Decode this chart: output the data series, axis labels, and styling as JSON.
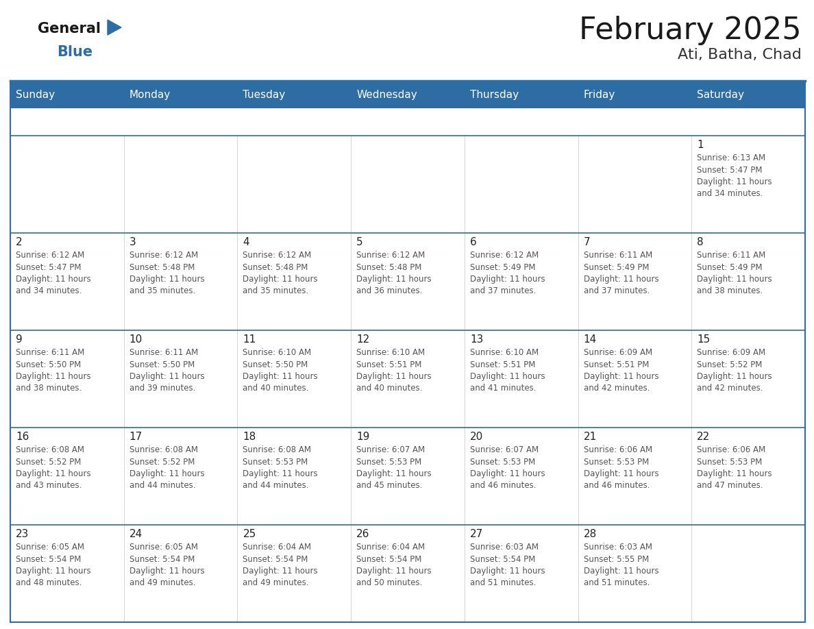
{
  "title": "February 2025",
  "subtitle": "Ati, Batha, Chad",
  "header_bg": "#2E6DA4",
  "header_text_color": "#FFFFFF",
  "divider_color": "#2E6DA4",
  "text_color": "#333333",
  "info_text_color": "#555555",
  "day_num_color": "#222222",
  "days_of_week": [
    "Sunday",
    "Monday",
    "Tuesday",
    "Wednesday",
    "Thursday",
    "Friday",
    "Saturday"
  ],
  "calendar_data": [
    [
      null,
      null,
      null,
      null,
      null,
      null,
      {
        "day": "1",
        "sunrise": "6:13 AM",
        "sunset": "5:47 PM",
        "daylight_mins": "and 34 minutes."
      }
    ],
    [
      {
        "day": "2",
        "sunrise": "6:12 AM",
        "sunset": "5:47 PM",
        "daylight_mins": "and 34 minutes."
      },
      {
        "day": "3",
        "sunrise": "6:12 AM",
        "sunset": "5:48 PM",
        "daylight_mins": "and 35 minutes."
      },
      {
        "day": "4",
        "sunrise": "6:12 AM",
        "sunset": "5:48 PM",
        "daylight_mins": "and 35 minutes."
      },
      {
        "day": "5",
        "sunrise": "6:12 AM",
        "sunset": "5:48 PM",
        "daylight_mins": "and 36 minutes."
      },
      {
        "day": "6",
        "sunrise": "6:12 AM",
        "sunset": "5:49 PM",
        "daylight_mins": "and 37 minutes."
      },
      {
        "day": "7",
        "sunrise": "6:11 AM",
        "sunset": "5:49 PM",
        "daylight_mins": "and 37 minutes."
      },
      {
        "day": "8",
        "sunrise": "6:11 AM",
        "sunset": "5:49 PM",
        "daylight_mins": "and 38 minutes."
      }
    ],
    [
      {
        "day": "9",
        "sunrise": "6:11 AM",
        "sunset": "5:50 PM",
        "daylight_mins": "and 38 minutes."
      },
      {
        "day": "10",
        "sunrise": "6:11 AM",
        "sunset": "5:50 PM",
        "daylight_mins": "and 39 minutes."
      },
      {
        "day": "11",
        "sunrise": "6:10 AM",
        "sunset": "5:50 PM",
        "daylight_mins": "and 40 minutes."
      },
      {
        "day": "12",
        "sunrise": "6:10 AM",
        "sunset": "5:51 PM",
        "daylight_mins": "and 40 minutes."
      },
      {
        "day": "13",
        "sunrise": "6:10 AM",
        "sunset": "5:51 PM",
        "daylight_mins": "and 41 minutes."
      },
      {
        "day": "14",
        "sunrise": "6:09 AM",
        "sunset": "5:51 PM",
        "daylight_mins": "and 42 minutes."
      },
      {
        "day": "15",
        "sunrise": "6:09 AM",
        "sunset": "5:52 PM",
        "daylight_mins": "and 42 minutes."
      }
    ],
    [
      {
        "day": "16",
        "sunrise": "6:08 AM",
        "sunset": "5:52 PM",
        "daylight_mins": "and 43 minutes."
      },
      {
        "day": "17",
        "sunrise": "6:08 AM",
        "sunset": "5:52 PM",
        "daylight_mins": "and 44 minutes."
      },
      {
        "day": "18",
        "sunrise": "6:08 AM",
        "sunset": "5:53 PM",
        "daylight_mins": "and 44 minutes."
      },
      {
        "day": "19",
        "sunrise": "6:07 AM",
        "sunset": "5:53 PM",
        "daylight_mins": "and 45 minutes."
      },
      {
        "day": "20",
        "sunrise": "6:07 AM",
        "sunset": "5:53 PM",
        "daylight_mins": "and 46 minutes."
      },
      {
        "day": "21",
        "sunrise": "6:06 AM",
        "sunset": "5:53 PM",
        "daylight_mins": "and 46 minutes."
      },
      {
        "day": "22",
        "sunrise": "6:06 AM",
        "sunset": "5:53 PM",
        "daylight_mins": "and 47 minutes."
      }
    ],
    [
      {
        "day": "23",
        "sunrise": "6:05 AM",
        "sunset": "5:54 PM",
        "daylight_mins": "and 48 minutes."
      },
      {
        "day": "24",
        "sunrise": "6:05 AM",
        "sunset": "5:54 PM",
        "daylight_mins": "and 49 minutes."
      },
      {
        "day": "25",
        "sunrise": "6:04 AM",
        "sunset": "5:54 PM",
        "daylight_mins": "and 49 minutes."
      },
      {
        "day": "26",
        "sunrise": "6:04 AM",
        "sunset": "5:54 PM",
        "daylight_mins": "and 50 minutes."
      },
      {
        "day": "27",
        "sunrise": "6:03 AM",
        "sunset": "5:54 PM",
        "daylight_mins": "and 51 minutes."
      },
      {
        "day": "28",
        "sunrise": "6:03 AM",
        "sunset": "5:55 PM",
        "daylight_mins": "and 51 minutes."
      },
      null
    ]
  ],
  "logo_general_color": "#1a1a1a",
  "logo_blue_color": "#2E6DA4",
  "logo_triangle_color": "#2E6DA4",
  "title_fontsize": 32,
  "subtitle_fontsize": 16,
  "header_fontsize": 11,
  "day_num_fontsize": 11,
  "info_fontsize": 8.5
}
